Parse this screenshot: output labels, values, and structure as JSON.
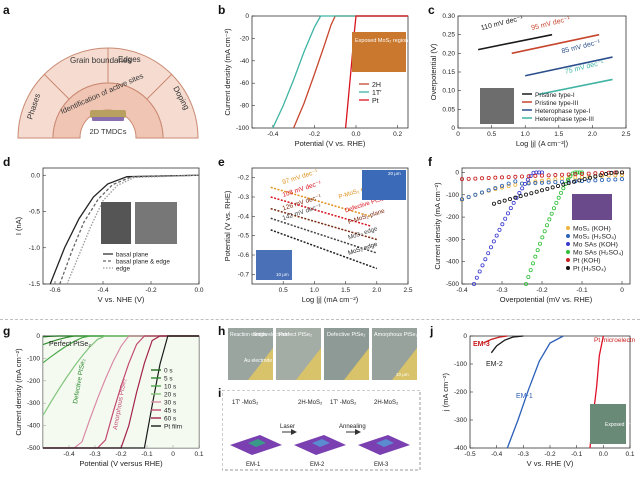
{
  "panel_labels": [
    "a",
    "b",
    "c",
    "d",
    "e",
    "f",
    "g",
    "h",
    "i",
    "j"
  ],
  "a": {
    "inner_label": "Identification of active sites",
    "center_label": "2D TMDCs",
    "segments": [
      "Phases",
      "Grain boundaries",
      "Edges",
      "Doping"
    ]
  },
  "chart_data": [
    {
      "id": "b",
      "type": "line",
      "xlabel": "Potential (V vs. RHE)",
      "ylabel": "Current density (mA cm⁻²)",
      "xlim": [
        -0.5,
        0.25
      ],
      "ylim": [
        -100,
        0
      ],
      "xticks": [
        "-0.4",
        "-0.2",
        "0.0",
        "0.2"
      ],
      "yticks": [
        "0",
        "-20",
        "-40",
        "-60",
        "-80",
        "-100"
      ],
      "series": [
        {
          "name": "2H",
          "color": "#c7462e",
          "x": [
            -0.3,
            -0.25,
            -0.2,
            -0.15,
            -0.12,
            -0.1,
            0.25
          ],
          "y": [
            -100,
            -78,
            -52,
            -25,
            -8,
            0,
            0
          ]
        },
        {
          "name": "1T′",
          "color": "#3fb3a4",
          "x": [
            -0.4,
            -0.35,
            -0.3,
            -0.25,
            -0.2,
            -0.17,
            0.25
          ],
          "y": [
            -100,
            -80,
            -57,
            -32,
            -10,
            0,
            0
          ]
        },
        {
          "name": "Pt",
          "color": "#d8141e",
          "x": [
            -0.05,
            -0.035,
            -0.02,
            -0.01,
            0.0,
            0.25
          ],
          "y": [
            -100,
            -70,
            -40,
            -18,
            0,
            0
          ]
        }
      ],
      "inset_label": "Exposed MoS₂ region"
    },
    {
      "id": "c",
      "type": "line",
      "xlabel": "Log |j| (A cm⁻²|)",
      "ylabel": "Overpotential (V)",
      "xlim": [
        0,
        2.5
      ],
      "ylim": [
        0,
        0.3
      ],
      "xticks": [
        "0",
        "0.5",
        "1.0",
        "1.5",
        "2.0",
        "2.5"
      ],
      "yticks": [
        "0",
        "0.05",
        "0.10",
        "0.15",
        "0.20",
        "0.25",
        "0.30"
      ],
      "series": [
        {
          "name": "Pristine type-I",
          "color": "#1a1a1a",
          "x": [
            0.3,
            1.4
          ],
          "y": [
            0.21,
            0.25
          ]
        },
        {
          "name": "Pristine type-III",
          "color": "#c7462e",
          "x": [
            0.8,
            2.1
          ],
          "y": [
            0.2,
            0.25
          ]
        },
        {
          "name": "Heterophase type-I",
          "color": "#2b4f8c",
          "x": [
            1.0,
            2.3
          ],
          "y": [
            0.14,
            0.19
          ]
        },
        {
          "name": "Heterophase type-III",
          "color": "#3fb3a4",
          "x": [
            1.2,
            2.3
          ],
          "y": [
            0.09,
            0.13
          ]
        }
      ],
      "annotations": [
        "110 mV dec⁻¹",
        "95 mV dec⁻¹",
        "85 mV dec⁻¹",
        "75 mV dec⁻¹"
      ]
    },
    {
      "id": "d",
      "type": "line",
      "xlabel": "V vs. NHE (V)",
      "ylabel": "I (nA)",
      "xlim": [
        -0.65,
        0
      ],
      "ylim": [
        -1.5,
        0.1
      ],
      "xticks": [
        "-0.6",
        "-0.4",
        "-0.2",
        "0.0"
      ],
      "yticks": [
        "0.0",
        "-0.5",
        "-1.0",
        "-1.5"
      ],
      "series": [
        {
          "name": "basal plane",
          "color": "#222222",
          "x": [
            -0.62,
            -0.56,
            -0.5,
            -0.44,
            -0.38,
            -0.3,
            0
          ],
          "y": [
            -1.5,
            -1.0,
            -0.6,
            -0.3,
            -0.12,
            -0.02,
            0
          ]
        },
        {
          "name": "basal plane & edge",
          "color": "#666666",
          "x": [
            -0.58,
            -0.53,
            -0.48,
            -0.42,
            -0.36,
            -0.28,
            0
          ],
          "y": [
            -1.5,
            -1.05,
            -0.65,
            -0.33,
            -0.13,
            -0.02,
            0
          ]
        },
        {
          "name": "edge",
          "color": "#999999",
          "x": [
            -0.55,
            -0.5,
            -0.45,
            -0.4,
            -0.34,
            -0.27,
            0
          ],
          "y": [
            -1.5,
            -1.1,
            -0.7,
            -0.35,
            -0.14,
            -0.03,
            0
          ]
        }
      ]
    },
    {
      "id": "e",
      "type": "line",
      "xlabel": "Log |j| (mA cm⁻²)",
      "ylabel": "Potential (V vs. RHE)",
      "xlim": [
        0,
        2.5
      ],
      "ylim": [
        -0.75,
        -0.15
      ],
      "xticks": [
        "0.5",
        "1.0",
        "1.5",
        "2.0",
        "2.5"
      ],
      "yticks": [
        "-0.2",
        "-0.3",
        "-0.4",
        "-0.5",
        "-0.6",
        "-0.7"
      ],
      "series": [
        {
          "name": "P-MoS₂ edge",
          "color": "#e0911c",
          "x": [
            0.3,
            1.9
          ],
          "y": [
            -0.25,
            -0.4
          ]
        },
        {
          "name": "Defective PtSe₂",
          "color": "#d8141e",
          "x": [
            0.3,
            1.9
          ],
          "y": [
            -0.3,
            -0.45
          ]
        },
        {
          "name": "P-MoS₂ plane",
          "color": "#7a2a10",
          "x": [
            0.3,
            2.0
          ],
          "y": [
            -0.36,
            -0.52
          ]
        },
        {
          "name": "MoS₂ edge",
          "color": "#444444",
          "x": [
            0.3,
            2.0
          ],
          "y": [
            -0.41,
            -0.59
          ]
        },
        {
          "name": "MoS₂ edge",
          "color": "#222222",
          "x": [
            0.3,
            2.0
          ],
          "y": [
            -0.47,
            -0.67
          ]
        }
      ],
      "annotations": [
        "97 mV dec⁻¹",
        "108 mV dec⁻¹",
        "126 mV dec⁻¹",
        "142 mV dec⁻¹",
        "P-MoS₂ edge",
        "Defective PtSe₂",
        "P-MoS₂ plane",
        "MoS₂ edge",
        "MoS₂ edge"
      ]
    },
    {
      "id": "f",
      "type": "scatter",
      "xlabel": "Overpotential (mV vs. RHE)",
      "ylabel": "Current density (mA cm⁻²)",
      "xlim": [
        -0.4,
        0.02
      ],
      "ylim": [
        -500,
        20
      ],
      "xticks": [
        "-0.4",
        "-0.3",
        "-0.2",
        "-0.1",
        "0"
      ],
      "yticks": [
        "0",
        "-100",
        "-200",
        "-300",
        "-400",
        "-500"
      ],
      "series": [
        {
          "name": "MoS₂ (KOH)",
          "color": "#f0b43c"
        },
        {
          "name": "MoS₂ (H₂SO₄)",
          "color": "#2a63b8"
        },
        {
          "name": "Mo SAs (KOH)",
          "color": "#3a3ad0"
        },
        {
          "name": "Mo SAs (H₂SO₄)",
          "color": "#2fbf3a"
        },
        {
          "name": "Pt (KOH)",
          "color": "#c81e1e"
        },
        {
          "name": "Pt (H₂SO₄)",
          "color": "#111111"
        }
      ]
    },
    {
      "id": "g",
      "type": "line",
      "xlabel": "Potential (V versus RHE)",
      "ylabel": "Current density (mA cm⁻²)",
      "xlim": [
        -0.5,
        0.1
      ],
      "ylim": [
        -500,
        0
      ],
      "xticks": [
        "-0.4",
        "-0.3",
        "-0.2",
        "-0.1",
        "0",
        "0.1"
      ],
      "yticks": [
        "0",
        "-100",
        "-200",
        "-300",
        "-400",
        "-500"
      ],
      "series": [
        {
          "name": "0 s",
          "color": "#1e6b1e"
        },
        {
          "name": "5 s",
          "color": "#2e8b2e"
        },
        {
          "name": "10 s",
          "color": "#48a848"
        },
        {
          "name": "20 s",
          "color": "#7fc47a"
        },
        {
          "name": "30 s",
          "color": "#d98aa6"
        },
        {
          "name": "45 s",
          "color": "#c24a72"
        },
        {
          "name": "60 s",
          "color": "#a3224c"
        },
        {
          "name": "Pt film",
          "color": "#1a1a1a"
        }
      ],
      "annotations": [
        "Perfect PtSe₂",
        "Defective PtSe₂",
        "Amorphous PtSe₂"
      ]
    },
    {
      "id": "j",
      "type": "line",
      "xlabel": "V vs. RHE (V)",
      "ylabel": "j (mA cm⁻²)",
      "xlim": [
        -0.5,
        0.1
      ],
      "ylim": [
        -400,
        0
      ],
      "xticks": [
        "-0.5",
        "-0.4",
        "-0.3",
        "-0.2",
        "-0.1",
        "0.0",
        "0.1"
      ],
      "yticks": [
        "0",
        "-100",
        "-200",
        "-300",
        "-400"
      ],
      "series": [
        {
          "name": "EM-1",
          "color": "#2b5fb8",
          "x": [
            -0.36,
            -0.32,
            -0.28,
            -0.24,
            -0.2,
            -0.15
          ],
          "y": [
            -400,
            -300,
            -190,
            -90,
            -25,
            0
          ]
        },
        {
          "name": "EM-2",
          "color": "#1a1a1a",
          "x": [
            -0.42,
            -0.4,
            -0.37,
            -0.34,
            -0.3
          ],
          "y": [
            -60,
            -35,
            -15,
            -4,
            0
          ]
        },
        {
          "name": "EM-3",
          "color": "#c81e1e",
          "x": [
            -0.45,
            -0.42,
            -0.39,
            -0.36
          ],
          "y": [
            -25,
            -12,
            -4,
            0
          ]
        },
        {
          "name": "Pt microelectrode",
          "color": "#e0112a",
          "x": [
            -0.05,
            -0.04,
            -0.025,
            -0.015,
            0.0
          ],
          "y": [
            -400,
            -300,
            -180,
            -70,
            0
          ]
        }
      ],
      "annotations": [
        "EM-3",
        "EM-2",
        "EM-1",
        "Pt microelectrode",
        "Exposed area"
      ]
    }
  ],
  "h": {
    "labels": [
      "Reaction window",
      "Single electrode",
      "Au electrode",
      "Perfect PtSe₂",
      "Defective PtSe₂",
      "Amorphous PtSe₂"
    ],
    "scale": "10 μm"
  },
  "i": {
    "labels": [
      "1T′ -MoS₂",
      "2H-MoS₂",
      "1T′ -MoS₂",
      "2H-MoS₂",
      "Laser",
      "Annealing",
      "EM-1",
      "EM-2",
      "EM-3"
    ]
  },
  "e_insets": [
    "20 μm",
    "10 μm"
  ]
}
